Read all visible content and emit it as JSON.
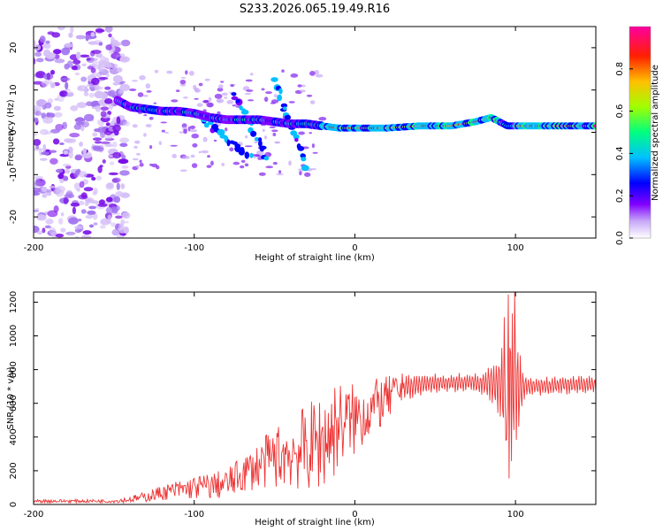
{
  "figure_title": "S233.2026.065.19.49.R16",
  "chart_data": [
    {
      "type": "heatmap",
      "title": "S233.2026.065.19.49.R16",
      "xlabel": "Height of straight line (km)",
      "ylabel": "Frequency (Hz)",
      "xlim": [
        -200,
        150
      ],
      "ylim": [
        -25,
        25
      ],
      "xticks": [
        -200,
        -100,
        0,
        100
      ],
      "yticks": [
        -20,
        -10,
        0,
        10,
        20
      ],
      "colorbar": {
        "label": "Normalized spectral amplitude",
        "range": [
          0,
          1
        ],
        "ticks": [
          0.0,
          0.2,
          0.4,
          0.6,
          0.8
        ],
        "tick_labels": [
          "0.0",
          "0.2",
          "0.4",
          "0.6",
          "0.8"
        ],
        "colors": [
          "#ffffff",
          "#8000ff",
          "#0000ff",
          "#00c0ff",
          "#00ff80",
          "#c0ff00",
          "#ffa000",
          "#ff0000",
          "#ff00c0"
        ]
      },
      "ridge": [
        {
          "x": -150,
          "y": 8
        },
        {
          "x": -140,
          "y": 6
        },
        {
          "x": -130,
          "y": 5.5
        },
        {
          "x": -120,
          "y": 5
        },
        {
          "x": -110,
          "y": 5
        },
        {
          "x": -100,
          "y": 4.5
        },
        {
          "x": -90,
          "y": 3.5
        },
        {
          "x": -80,
          "y": 3
        },
        {
          "x": -70,
          "y": 3
        },
        {
          "x": -60,
          "y": 3
        },
        {
          "x": -50,
          "y": 2.5
        },
        {
          "x": -40,
          "y": 2
        },
        {
          "x": -30,
          "y": 2
        },
        {
          "x": -20,
          "y": 1.5
        },
        {
          "x": -10,
          "y": 1
        },
        {
          "x": 0,
          "y": 1
        },
        {
          "x": 20,
          "y": 1
        },
        {
          "x": 40,
          "y": 1.5
        },
        {
          "x": 60,
          "y": 1.5
        },
        {
          "x": 75,
          "y": 2.5
        },
        {
          "x": 85,
          "y": 3.5
        },
        {
          "x": 90,
          "y": 2.5
        },
        {
          "x": 95,
          "y": 1.5
        },
        {
          "x": 100,
          "y": 1.5
        },
        {
          "x": 120,
          "y": 1.5
        },
        {
          "x": 150,
          "y": 1.5
        }
      ],
      "diagonal_streaks": [
        {
          "from": [
            -95,
            3
          ],
          "to": [
            -65,
            -6
          ]
        },
        {
          "from": [
            -75,
            9
          ],
          "to": [
            -55,
            -6
          ]
        },
        {
          "from": [
            -50,
            12
          ],
          "to": [
            -30,
            -8
          ]
        }
      ]
    },
    {
      "type": "line",
      "xlabel": "Height of straight line (km)",
      "ylabel": "SNR (10 * v/v)",
      "xlim": [
        -200,
        150
      ],
      "ylim": [
        0,
        1260
      ],
      "xticks": [
        -200,
        -100,
        0,
        100
      ],
      "yticks": [
        0,
        200,
        400,
        600,
        800,
        1000,
        1200
      ],
      "series": [
        {
          "name": "SNR",
          "color": "#ee3333",
          "envelope_x": [
            -200,
            -150,
            -140,
            -130,
            -120,
            -110,
            -100,
            -90,
            -80,
            -70,
            -60,
            -50,
            -40,
            -30,
            -20,
            -15,
            -10,
            0,
            10,
            20,
            30,
            40,
            50,
            60,
            70,
            80,
            90,
            95,
            100,
            105,
            110,
            120,
            130,
            140,
            150
          ],
          "envelope_mean": [
            20,
            20,
            30,
            45,
            70,
            85,
            100,
            110,
            120,
            180,
            230,
            280,
            310,
            330,
            380,
            420,
            480,
            500,
            570,
            620,
            690,
            710,
            720,
            720,
            720,
            720,
            710,
            700,
            700,
            700,
            700,
            700,
            710,
            710,
            710
          ],
          "envelope_amp": [
            10,
            10,
            20,
            30,
            45,
            60,
            70,
            80,
            90,
            110,
            140,
            180,
            220,
            260,
            300,
            320,
            250,
            220,
            170,
            140,
            90,
            70,
            60,
            60,
            60,
            70,
            220,
            600,
            500,
            80,
            60,
            60,
            60,
            60,
            60
          ]
        }
      ]
    }
  ]
}
